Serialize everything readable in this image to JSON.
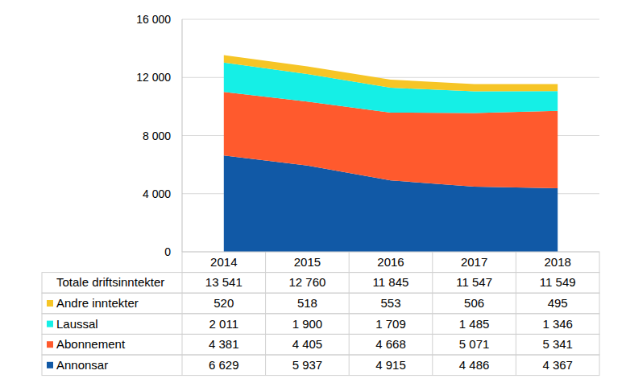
{
  "chart_data": {
    "type": "area",
    "stacked": true,
    "grid": true,
    "categories": [
      "2014",
      "2015",
      "2016",
      "2017",
      "2018"
    ],
    "ylim": [
      0,
      16000
    ],
    "yticks": [
      0,
      {
        "value": 4000,
        "label": "4 000"
      },
      {
        "value": 8000,
        "label": "8 000"
      },
      {
        "value": 12000,
        "label": "12 000"
      },
      {
        "value": 16000,
        "label": "16 000"
      }
    ],
    "series": [
      {
        "name": "Annonsar",
        "color": "#1159a6",
        "values": [
          6629,
          5937,
          4915,
          4486,
          4367
        ],
        "value_labels": [
          "6 629",
          "5 937",
          "4 915",
          "4 486",
          "4 367"
        ]
      },
      {
        "name": "Abonnement",
        "color": "#ff5a2d",
        "values": [
          4381,
          4405,
          4668,
          5071,
          5341
        ],
        "value_labels": [
          "4 381",
          "4 405",
          "4 668",
          "5 071",
          "5 341"
        ]
      },
      {
        "name": "Laussal",
        "color": "#15efe6",
        "values": [
          2011,
          1900,
          1709,
          1485,
          1346
        ],
        "value_labels": [
          "2 011",
          "1 900",
          "1 709",
          "1 485",
          "1 346"
        ]
      },
      {
        "name": "Andre inntekter",
        "color": "#f6c526",
        "values": [
          520,
          518,
          553,
          506,
          495
        ],
        "value_labels": [
          "520",
          "518",
          "553",
          "506",
          "495"
        ]
      }
    ],
    "total": {
      "name": "Totale driftsinntekter",
      "values": [
        13541,
        12760,
        11845,
        11547,
        11549
      ],
      "value_labels": [
        "13 541",
        "12 760",
        "11 845",
        "11 547",
        "11 549"
      ]
    }
  }
}
